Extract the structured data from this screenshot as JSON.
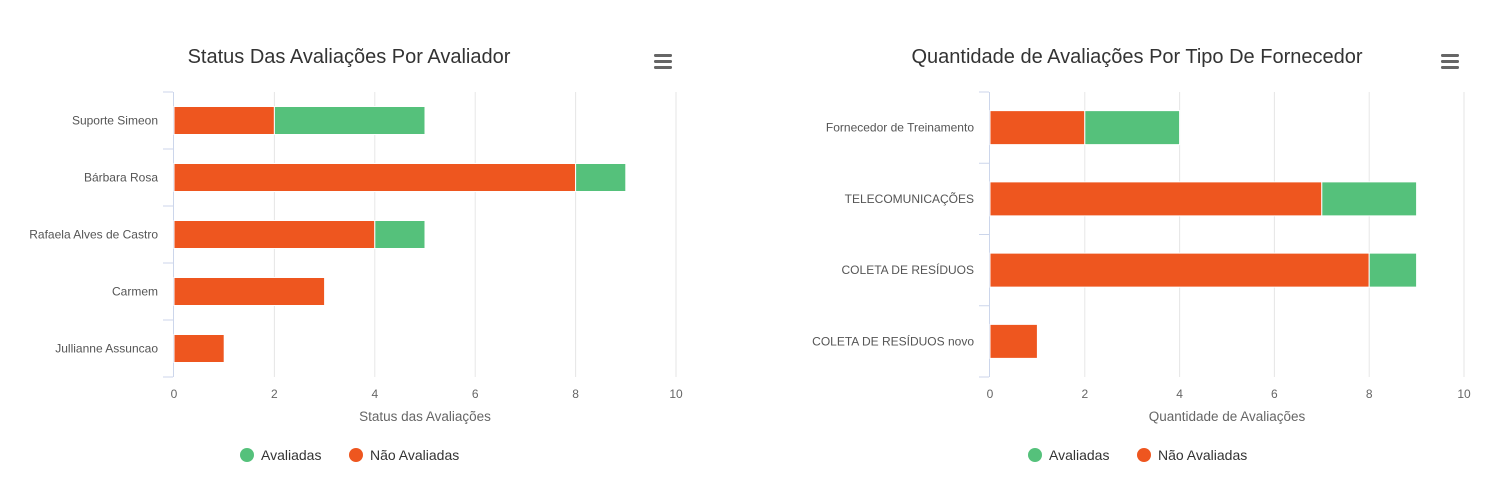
{
  "colors": {
    "avaliadas": "#55c17b",
    "nao_avaliadas": "#ee561f",
    "grid": "#e6e6e6",
    "axis": "#ccd6eb"
  },
  "menu_icon": "hamburger-menu-icon",
  "chart_data": [
    {
      "type": "bar",
      "orientation": "horizontal",
      "stacked": true,
      "title": "Status Das Avaliações Por Avaliador",
      "categories": [
        "Suporte Simeon",
        "Bárbara Rosa",
        "Rafaela Alves de Castro",
        "Carmem",
        "Jullianne Assuncao"
      ],
      "series": [
        {
          "name": "Avaliadas",
          "values": [
            3,
            1,
            1,
            0,
            0
          ]
        },
        {
          "name": "Não Avaliadas",
          "values": [
            2,
            8,
            4,
            3,
            1
          ]
        }
      ],
      "xlabel": "Status das Avaliações",
      "xlim": [
        0,
        10
      ],
      "ticks": [
        0,
        2,
        4,
        6,
        8,
        10
      ],
      "grid": true,
      "legend": "bottom-center"
    },
    {
      "type": "bar",
      "orientation": "horizontal",
      "stacked": true,
      "title": "Quantidade de Avaliações Por Tipo De Fornecedor",
      "categories": [
        "Fornecedor de Treinamento",
        "TELECOMUNICAÇÕES",
        "COLETA DE RESÍDUOS",
        "COLETA DE RESÍDUOS novo"
      ],
      "series": [
        {
          "name": "Avaliadas",
          "values": [
            2,
            2,
            1,
            0
          ]
        },
        {
          "name": "Não Avaliadas",
          "values": [
            2,
            7,
            8,
            1
          ]
        }
      ],
      "xlabel": "Quantidade de Avaliações",
      "xlim": [
        0,
        10
      ],
      "ticks": [
        0,
        2,
        4,
        6,
        8,
        10
      ],
      "grid": true,
      "legend": "bottom-center"
    }
  ]
}
